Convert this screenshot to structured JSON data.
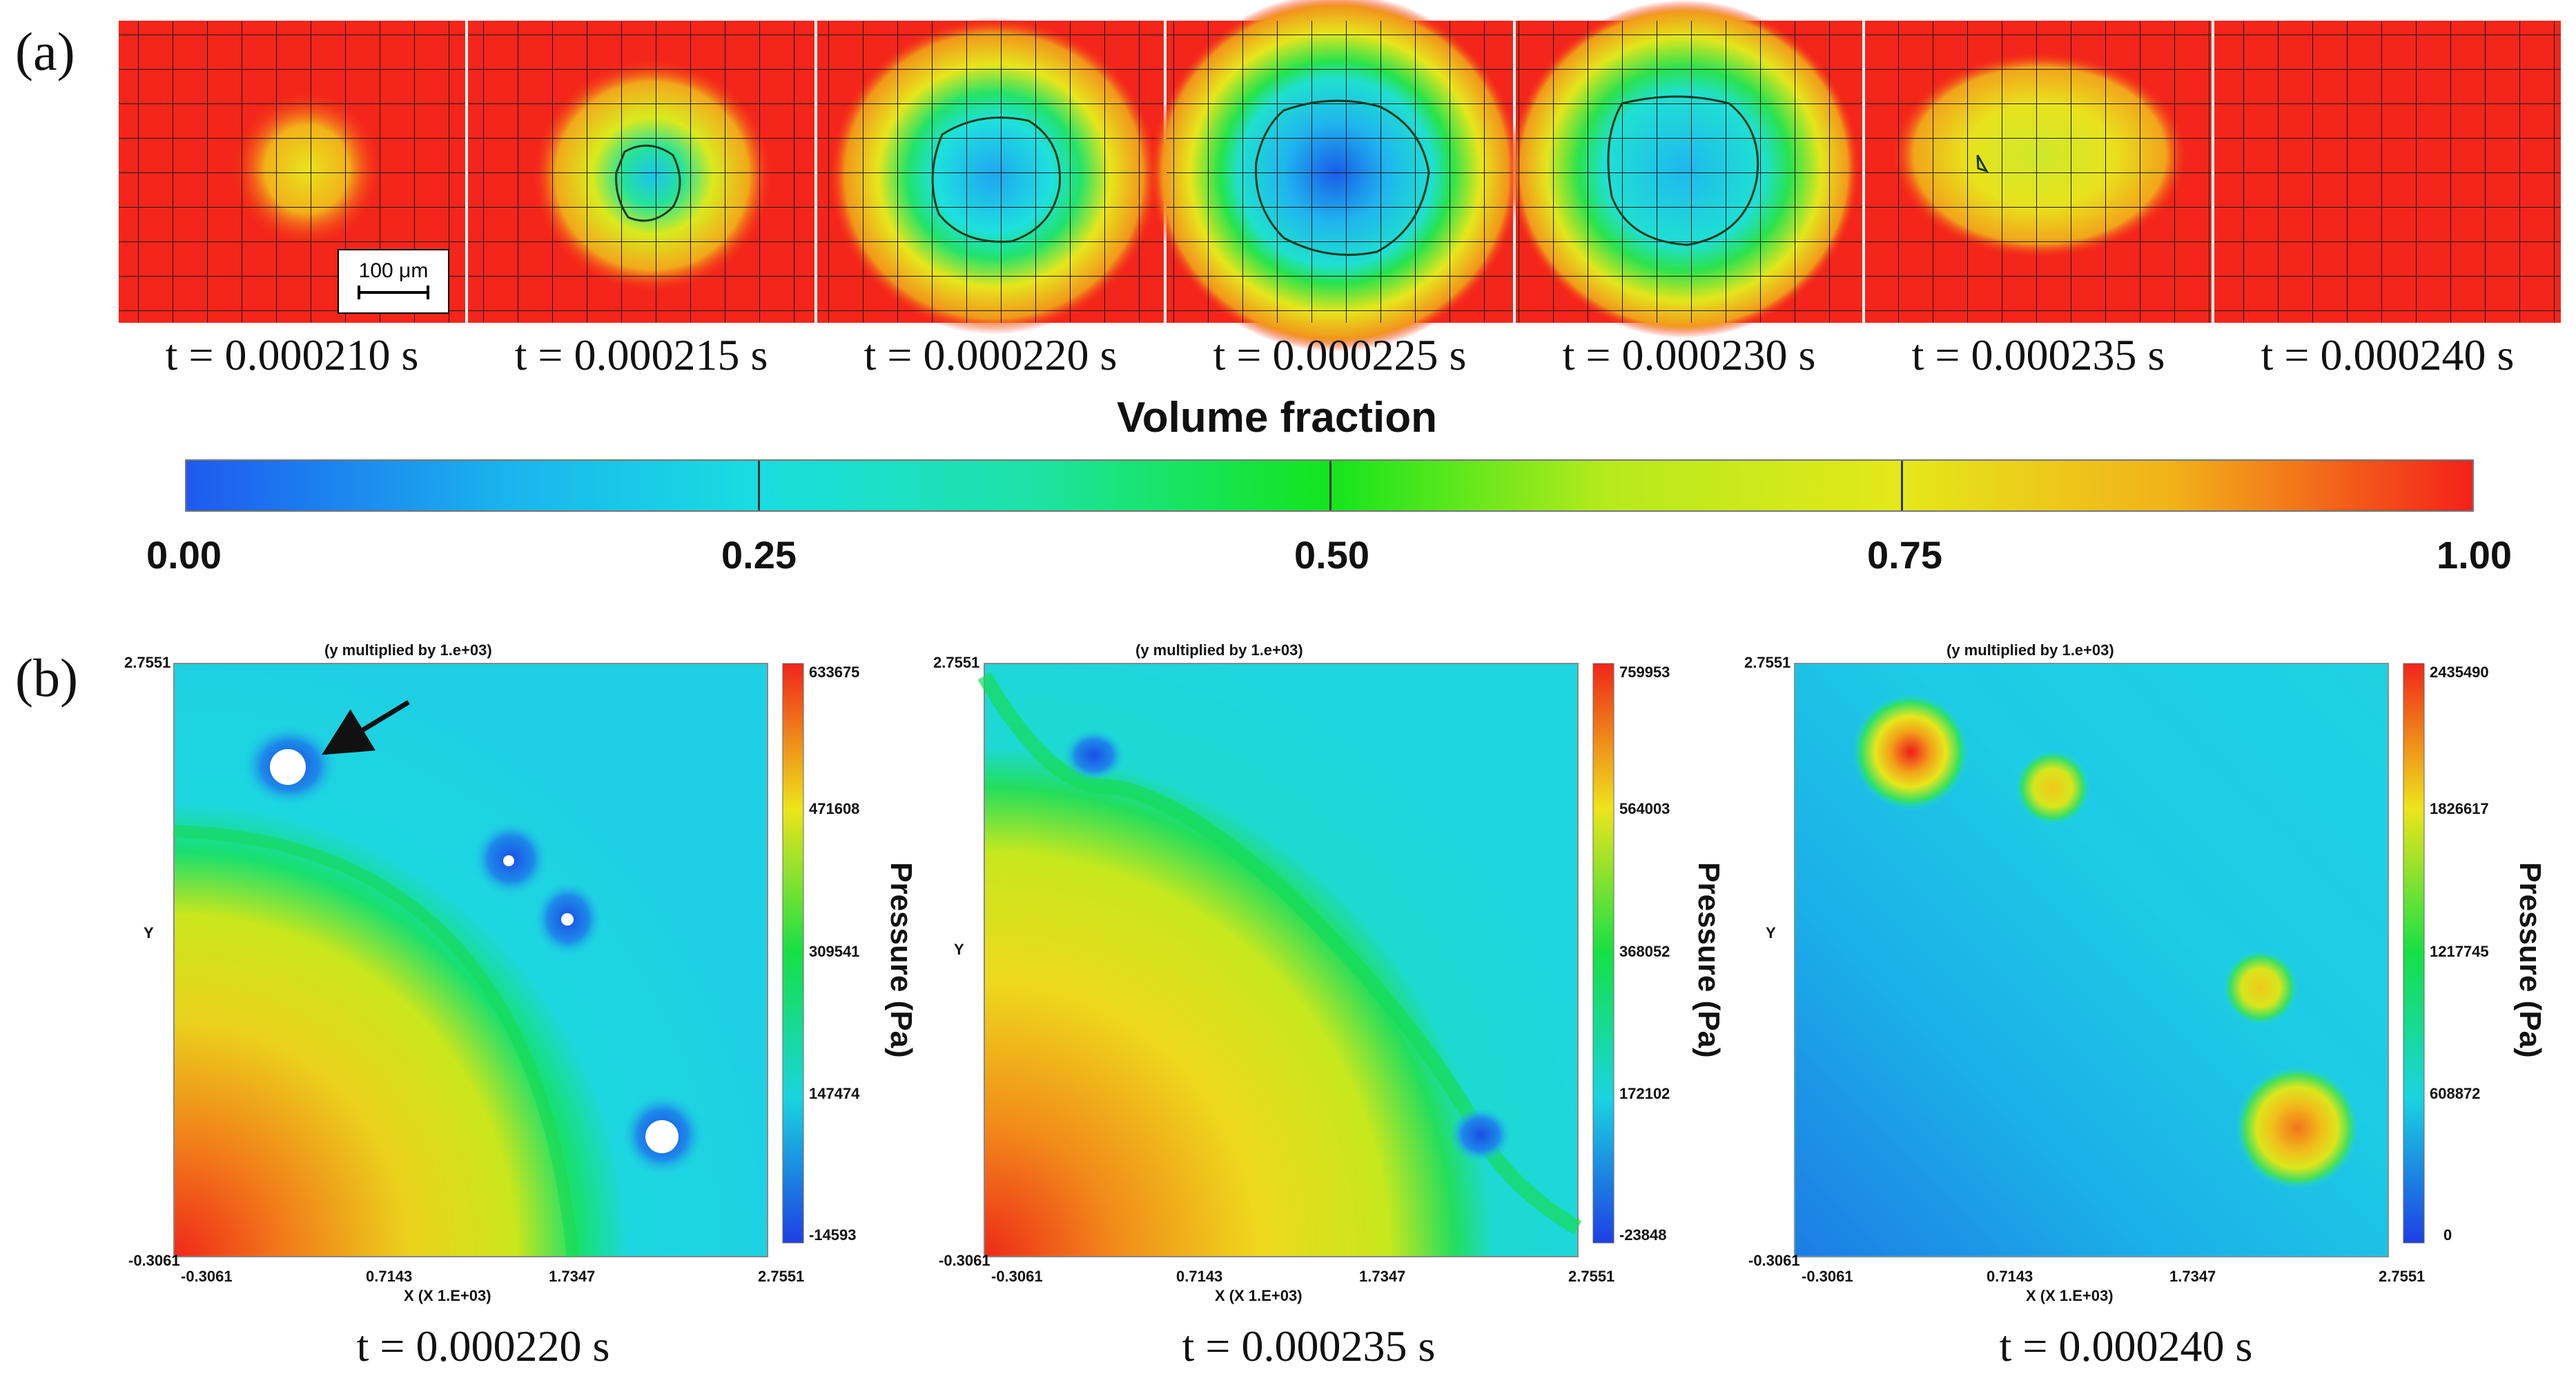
{
  "panel_a": {
    "label": "(a)",
    "scale_bar": "100 μm",
    "frames": [
      {
        "caption": "t = 0.000210 s",
        "bubble_radius": 0.09,
        "min_fraction": 0.72
      },
      {
        "caption": "t = 0.000215 s",
        "bubble_radius": 0.1,
        "min_fraction": 0.28
      },
      {
        "caption": "t = 0.000220 s",
        "bubble_radius": 0.16,
        "min_fraction": 0.12
      },
      {
        "caption": "t = 0.000225 s",
        "bubble_radius": 0.19,
        "min_fraction": 0.0
      },
      {
        "caption": "t = 0.000230 s",
        "bubble_radius": 0.17,
        "min_fraction": 0.18
      },
      {
        "caption": "t = 0.000235 s",
        "bubble_radius": 0.11,
        "min_fraction": 0.7
      },
      {
        "caption": "t = 0.000240 s",
        "bubble_radius": 0.0,
        "min_fraction": 1.0
      }
    ],
    "colorbar": {
      "title": "Volume fraction",
      "ticks": [
        "0.00",
        "0.25",
        "0.50",
        "0.75",
        "1.00"
      ],
      "colors": {
        "low": "#1e5af0",
        "quarter": "#19dde0",
        "mid": "#12e51c",
        "threequarter": "#e4e81a",
        "high": "#f4211a"
      }
    }
  },
  "panel_b": {
    "label": "(b)",
    "plots": [
      {
        "caption": "t = 0.000220 s",
        "header": "(y multiplied by  1.e+03)",
        "x_axis_label": "X  (X 1.E+03)",
        "y_axis_label": "Y",
        "x_ticks": [
          "-0.3061",
          "0.7143",
          "1.7347",
          "2.7551"
        ],
        "y_top": "2.7551",
        "y_bottom": "-0.3061",
        "colorbar_ticks": [
          "633675",
          "471608",
          "309541",
          "147474",
          "-14593"
        ],
        "colorbar_title": "Pressure (Pa)"
      },
      {
        "caption": "t = 0.000235 s",
        "header": "(y multiplied by  1.e+03)",
        "x_axis_label": "X  (X 1.E+03)",
        "y_axis_label": "Y",
        "x_ticks": [
          "-0.3061",
          "0.7143",
          "1.7347",
          "2.7551"
        ],
        "y_top": "2.7551",
        "y_bottom": "-0.3061",
        "colorbar_ticks": [
          "759953",
          "564003",
          "368052",
          "172102",
          "-23848"
        ],
        "colorbar_title": "Pressure (Pa)"
      },
      {
        "caption": "t = 0.000240 s",
        "header": "(y multiplied by  1.e+03)",
        "x_axis_label": "X  (X 1.E+03)",
        "y_axis_label": "Y",
        "x_ticks": [
          "-0.3061",
          "0.7143",
          "1.7347",
          "2.7551"
        ],
        "y_top": "2.7551",
        "y_bottom": "-0.3061",
        "colorbar_ticks": [
          "2435490",
          "1826617",
          "1217745",
          "608872",
          "0"
        ],
        "colorbar_title": "Pressure (Pa)"
      }
    ]
  }
}
